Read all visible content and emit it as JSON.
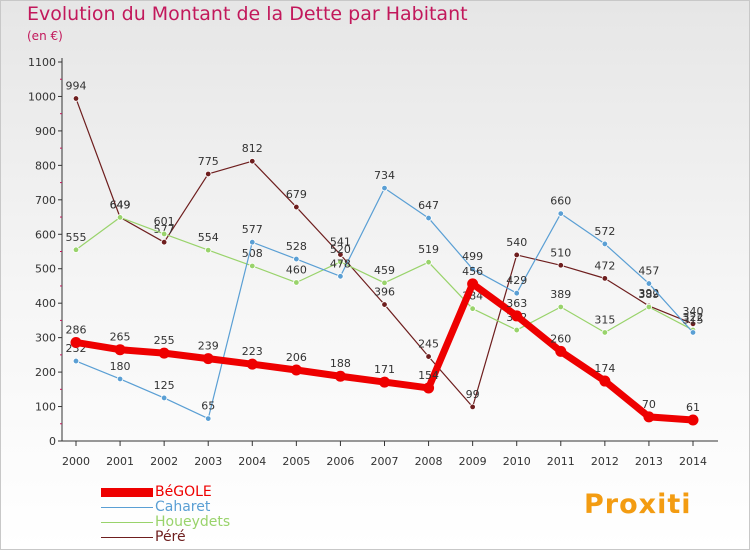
{
  "title": "Evolution du Montant de la Dette par Habitant",
  "subtitle": "(en €)",
  "brand": "Proxiti",
  "chart_data": {
    "type": "line",
    "x": [
      "2000",
      "2001",
      "2002",
      "2003",
      "2004",
      "2005",
      "2006",
      "2007",
      "2008",
      "2009",
      "2010",
      "2011",
      "2012",
      "2013",
      "2014"
    ],
    "y_ticks": [
      0,
      100,
      200,
      300,
      400,
      500,
      600,
      700,
      800,
      900,
      1000,
      1100
    ],
    "ylim": [
      0,
      1100
    ],
    "grid": false,
    "legend_position": "bottom-left",
    "series": [
      {
        "name": "Péré",
        "color": "#6e1e1e",
        "width": 1.2,
        "values": [
          994,
          649,
          577,
          775,
          812,
          679,
          541,
          396,
          245,
          99,
          540,
          510,
          472,
          392,
          340
        ]
      },
      {
        "name": "Houeydets",
        "color": "#99d36b",
        "width": 1.2,
        "values": [
          555,
          649,
          601,
          554,
          508,
          460,
          520,
          459,
          519,
          384,
          322,
          389,
          315,
          389,
          322
        ]
      },
      {
        "name": "Caharet",
        "color": "#5a9fd4",
        "width": 1.2,
        "values": [
          232,
          180,
          125,
          65,
          577,
          528,
          478,
          734,
          647,
          499,
          429,
          660,
          572,
          457,
          315
        ]
      },
      {
        "name": "BéGOLE",
        "color": "#ee0000",
        "width": 7,
        "values": [
          286,
          265,
          255,
          239,
          223,
          206,
          188,
          171,
          154,
          456,
          363,
          260,
          174,
          70,
          61
        ]
      }
    ],
    "legend": [
      {
        "name": "BéGOLE",
        "color": "#ee0000",
        "thickness": 9
      },
      {
        "name": "Caharet",
        "color": "#5a9fd4",
        "thickness": 1.5
      },
      {
        "name": "Houeydets",
        "color": "#99d36b",
        "thickness": 1.5
      },
      {
        "name": "Péré",
        "color": "#6e1e1e",
        "thickness": 1.5
      }
    ]
  }
}
